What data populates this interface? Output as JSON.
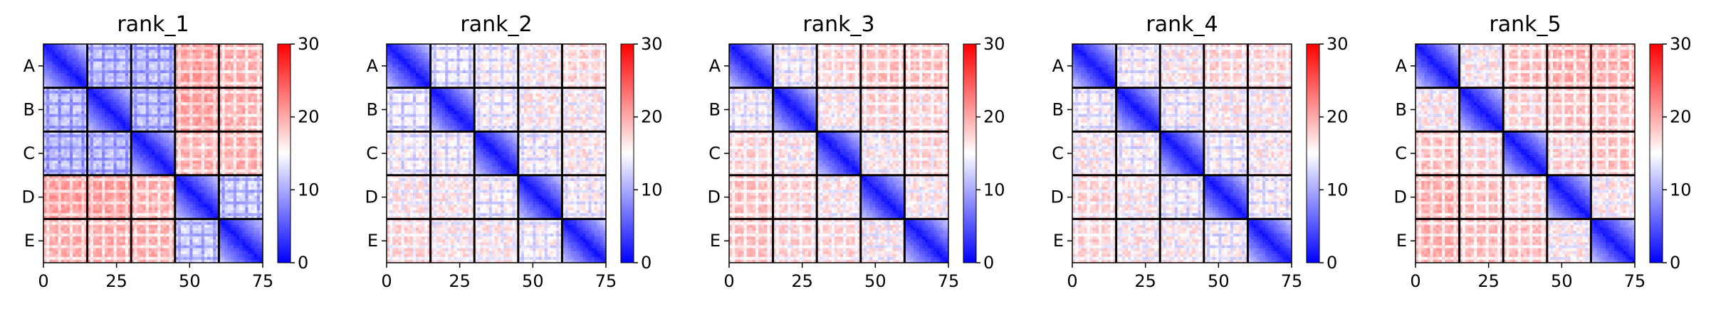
{
  "chart_data": [
    {
      "type": "heatmap",
      "title": "rank_1",
      "row_labels": [
        "A",
        "B",
        "C",
        "D",
        "E"
      ],
      "x_ticks": [
        0,
        25,
        50,
        75
      ],
      "colorbar_ticks": [
        0,
        10,
        20,
        30
      ],
      "vmin": 0,
      "vmax": 30,
      "colormap": "bwr",
      "matrix_size": 75,
      "blocks": 5,
      "block_means": [
        [
          6,
          12,
          12,
          21,
          20
        ],
        [
          12,
          6,
          12,
          21,
          20
        ],
        [
          12,
          12,
          6,
          20,
          20
        ],
        [
          21,
          21,
          20,
          6,
          13
        ],
        [
          20,
          20,
          20,
          13,
          6
        ]
      ]
    },
    {
      "type": "heatmap",
      "title": "rank_2",
      "row_labels": [
        "A",
        "B",
        "C",
        "D",
        "E"
      ],
      "x_ticks": [
        0,
        25,
        50,
        75
      ],
      "colorbar_ticks": [
        0,
        10,
        20,
        30
      ],
      "vmin": 0,
      "vmax": 30,
      "colormap": "bwr",
      "matrix_size": 75,
      "blocks": 5,
      "block_means": [
        [
          6,
          15,
          16,
          17,
          18
        ],
        [
          15,
          6,
          16,
          17,
          17
        ],
        [
          16,
          16,
          6,
          16,
          17
        ],
        [
          17,
          17,
          16,
          6,
          16
        ],
        [
          18,
          17,
          17,
          16,
          6
        ]
      ]
    },
    {
      "type": "heatmap",
      "title": "rank_3",
      "row_labels": [
        "A",
        "B",
        "C",
        "D",
        "E"
      ],
      "x_ticks": [
        0,
        25,
        50,
        75
      ],
      "colorbar_ticks": [
        0,
        10,
        20,
        30
      ],
      "vmin": 0,
      "vmax": 30,
      "colormap": "bwr",
      "matrix_size": 75,
      "blocks": 5,
      "block_means": [
        [
          6,
          16,
          18,
          19,
          19
        ],
        [
          16,
          6,
          17,
          18,
          18
        ],
        [
          18,
          17,
          6,
          17,
          18
        ],
        [
          19,
          18,
          17,
          6,
          17
        ],
        [
          19,
          18,
          18,
          17,
          6
        ]
      ]
    },
    {
      "type": "heatmap",
      "title": "rank_4",
      "row_labels": [
        "A",
        "B",
        "C",
        "D",
        "E"
      ],
      "x_ticks": [
        0,
        25,
        50,
        75
      ],
      "colorbar_ticks": [
        0,
        10,
        20,
        30
      ],
      "vmin": 0,
      "vmax": 30,
      "colormap": "bwr",
      "matrix_size": 75,
      "blocks": 5,
      "block_means": [
        [
          6,
          16,
          17,
          18,
          18
        ],
        [
          16,
          6,
          16,
          17,
          17
        ],
        [
          17,
          16,
          6,
          16,
          17
        ],
        [
          18,
          17,
          16,
          6,
          16
        ],
        [
          18,
          17,
          17,
          16,
          6
        ]
      ]
    },
    {
      "type": "heatmap",
      "title": "rank_5",
      "row_labels": [
        "A",
        "B",
        "C",
        "D",
        "E"
      ],
      "x_ticks": [
        0,
        25,
        50,
        75
      ],
      "colorbar_ticks": [
        0,
        10,
        20,
        30
      ],
      "vmin": 0,
      "vmax": 30,
      "colormap": "bwr",
      "matrix_size": 75,
      "blocks": 5,
      "block_means": [
        [
          6,
          17,
          19,
          20,
          20
        ],
        [
          17,
          6,
          18,
          19,
          19
        ],
        [
          19,
          18,
          6,
          18,
          19
        ],
        [
          20,
          19,
          18,
          6,
          17
        ],
        [
          20,
          19,
          19,
          17,
          6
        ]
      ]
    }
  ]
}
